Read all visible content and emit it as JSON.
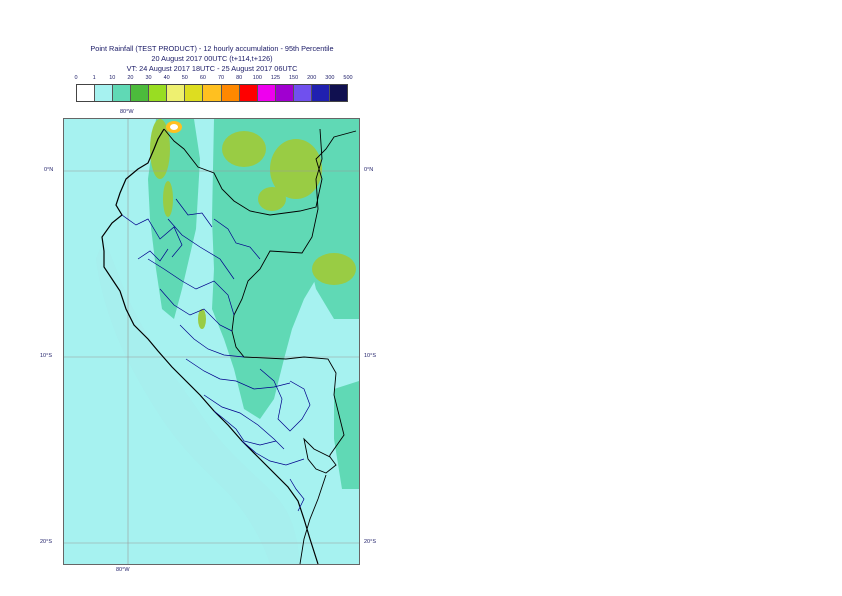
{
  "title": {
    "line1": "Point Rainfall (TEST PRODUCT) - 12 hourly accumulation - 95th Percentile",
    "line2": "20 August 2017 00UTC (t+114,t+126)",
    "line3": "VT: 24 August 2017 18UTC - 25 August 2017 06UTC"
  },
  "legend": {
    "ticks": [
      "0",
      "1",
      "10",
      "20",
      "30",
      "40",
      "50",
      "60",
      "70",
      "80",
      "100",
      "125",
      "150",
      "200",
      "300",
      "500"
    ],
    "colors": [
      "#ffffff",
      "#a6f2f0",
      "#60d9b5",
      "#4cbb3c",
      "#99dd22",
      "#eef070",
      "#dddd20",
      "#ffc020",
      "#ff8800",
      "#ff0000",
      "#ee00ee",
      "#a000d0",
      "#7050ee",
      "#2020b0",
      "#101050"
    ]
  },
  "map": {
    "lon_labels": {
      "top": "80°W",
      "bottom": "80°W"
    },
    "lat_labels": {
      "eq": "0°N",
      "s10": "10°S",
      "s20": "20°S"
    },
    "colors": {
      "sea": "#a6f2f0",
      "light_green": "#60d9b5",
      "green": "#99cc44",
      "coast": "#000000",
      "borders": "#00008b",
      "graticule": "#999999"
    }
  }
}
